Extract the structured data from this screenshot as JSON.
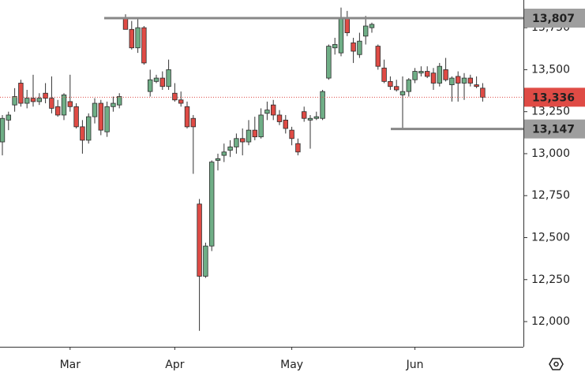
{
  "chart_data": {
    "type": "candlestick",
    "categories": [
      null,
      null,
      null,
      null,
      null,
      null,
      null,
      null,
      null,
      null,
      null,
      "Mar",
      null,
      null,
      null,
      null,
      null,
      null,
      null,
      null,
      null,
      null,
      null,
      null,
      null,
      null,
      null,
      null,
      "Apr",
      null,
      null,
      null,
      null,
      null,
      null,
      null,
      null,
      null,
      null,
      null,
      null,
      null,
      null,
      null,
      null,
      null,
      null,
      "May",
      null,
      null,
      null,
      null,
      null,
      null,
      null,
      null,
      null,
      null,
      null,
      null,
      null,
      null,
      null,
      null,
      null,
      null,
      null,
      "Jun",
      null,
      null,
      null,
      null,
      null,
      null,
      null,
      null,
      null,
      null,
      null
    ],
    "open": [
      13070,
      13200,
      13290,
      13420,
      13300,
      13330,
      13310,
      13360,
      13330,
      13280,
      13230,
      13310,
      13280,
      13160,
      13080,
      13220,
      13300,
      13130,
      13280,
      13290,
      13810,
      13740,
      13630,
      13750,
      13370,
      13430,
      13450,
      13400,
      13360,
      13320,
      13280,
      13210,
      12700,
      12270,
      12450,
      12960,
      12990,
      13020,
      13040,
      13090,
      13070,
      13140,
      13100,
      13240,
      13290,
      13230,
      13200,
      13140,
      13060,
      13250,
      13200,
      13210,
      13210,
      13450,
      13630,
      13600,
      13810,
      13660,
      13590,
      13700,
      13750,
      13640,
      13510,
      13430,
      13400,
      13350,
      13370,
      13440,
      13480,
      13490,
      13480,
      13420,
      13500,
      13410,
      13460,
      13420,
      13450,
      13410,
      13390
    ],
    "high": [
      13230,
      13250,
      13390,
      13440,
      13380,
      13470,
      13360,
      13420,
      13460,
      13320,
      13360,
      13470,
      13300,
      13200,
      13240,
      13330,
      13320,
      13310,
      13340,
      13360,
      13830,
      13790,
      13800,
      13760,
      13500,
      13470,
      13490,
      13560,
      13420,
      13370,
      13310,
      13230,
      12730,
      12470,
      12960,
      13000,
      13060,
      13080,
      13120,
      13150,
      13200,
      13220,
      13270,
      13310,
      13320,
      13260,
      13230,
      13160,
      13090,
      13280,
      13230,
      13250,
      13380,
      13650,
      13690,
      13870,
      13850,
      13690,
      13720,
      13820,
      13780,
      13650,
      13560,
      13460,
      13440,
      13460,
      13450,
      13510,
      13520,
      13520,
      13510,
      13540,
      13570,
      13460,
      13490,
      13480,
      13470,
      13460,
      13420
    ],
    "low": [
      12990,
      13140,
      13250,
      13280,
      13270,
      13280,
      13290,
      13300,
      13240,
      13220,
      13200,
      13250,
      13150,
      13000,
      13060,
      13180,
      13110,
      13100,
      13250,
      13270,
      13740,
      13620,
      13600,
      13530,
      13340,
      13420,
      13380,
      13380,
      13310,
      13280,
      13150,
      12880,
      11945,
      12260,
      12420,
      12900,
      12950,
      12980,
      13000,
      12990,
      13050,
      13080,
      13090,
      13200,
      13200,
      13170,
      13120,
      13050,
      12990,
      13190,
      13030,
      13200,
      13200,
      13440,
      13590,
      13580,
      13700,
      13540,
      13570,
      13650,
      13720,
      13500,
      13420,
      13380,
      13370,
      13150,
      13340,
      13420,
      13460,
      13450,
      13380,
      13400,
      13430,
      13310,
      13310,
      13320,
      13400,
      13390,
      13310
    ],
    "close": [
      13210,
      13230,
      13340,
      13300,
      13330,
      13310,
      13330,
      13330,
      13270,
      13230,
      13350,
      13280,
      13160,
      13080,
      13220,
      13300,
      13140,
      13280,
      13300,
      13340,
      13740,
      13630,
      13750,
      13540,
      13440,
      13450,
      13400,
      13500,
      13320,
      13300,
      13160,
      13160,
      12270,
      12450,
      12950,
      12970,
      13010,
      13040,
      13090,
      13070,
      13140,
      13100,
      13230,
      13260,
      13230,
      13190,
      13150,
      13090,
      13010,
      13210,
      13210,
      13220,
      13370,
      13640,
      13650,
      13810,
      13720,
      13610,
      13670,
      13760,
      13770,
      13520,
      13430,
      13400,
      13380,
      13370,
      13440,
      13490,
      13490,
      13460,
      13420,
      13520,
      13440,
      13450,
      13420,
      13450,
      13420,
      13400,
      13336
    ],
    "up_color": "#6fae86",
    "down_color": "#df4b45",
    "ylim": [
      11850,
      13915
    ],
    "yticks": [
      {
        "value": 12000,
        "label": "12,000"
      },
      {
        "value": 12250,
        "label": "12,250"
      },
      {
        "value": 12500,
        "label": "12,500"
      },
      {
        "value": 12750,
        "label": "12,750"
      },
      {
        "value": 13000,
        "label": "13,000"
      },
      {
        "value": 13250,
        "label": "13,250"
      },
      {
        "value": 13500,
        "label": "13,500"
      },
      {
        "value": 13750,
        "label": "13,750"
      }
    ],
    "levels": [
      {
        "value": 13807,
        "label": "13,807"
      },
      {
        "value": 13147,
        "label": "13,147"
      }
    ],
    "last_price": {
      "value": 13336,
      "label": "13,336"
    }
  }
}
